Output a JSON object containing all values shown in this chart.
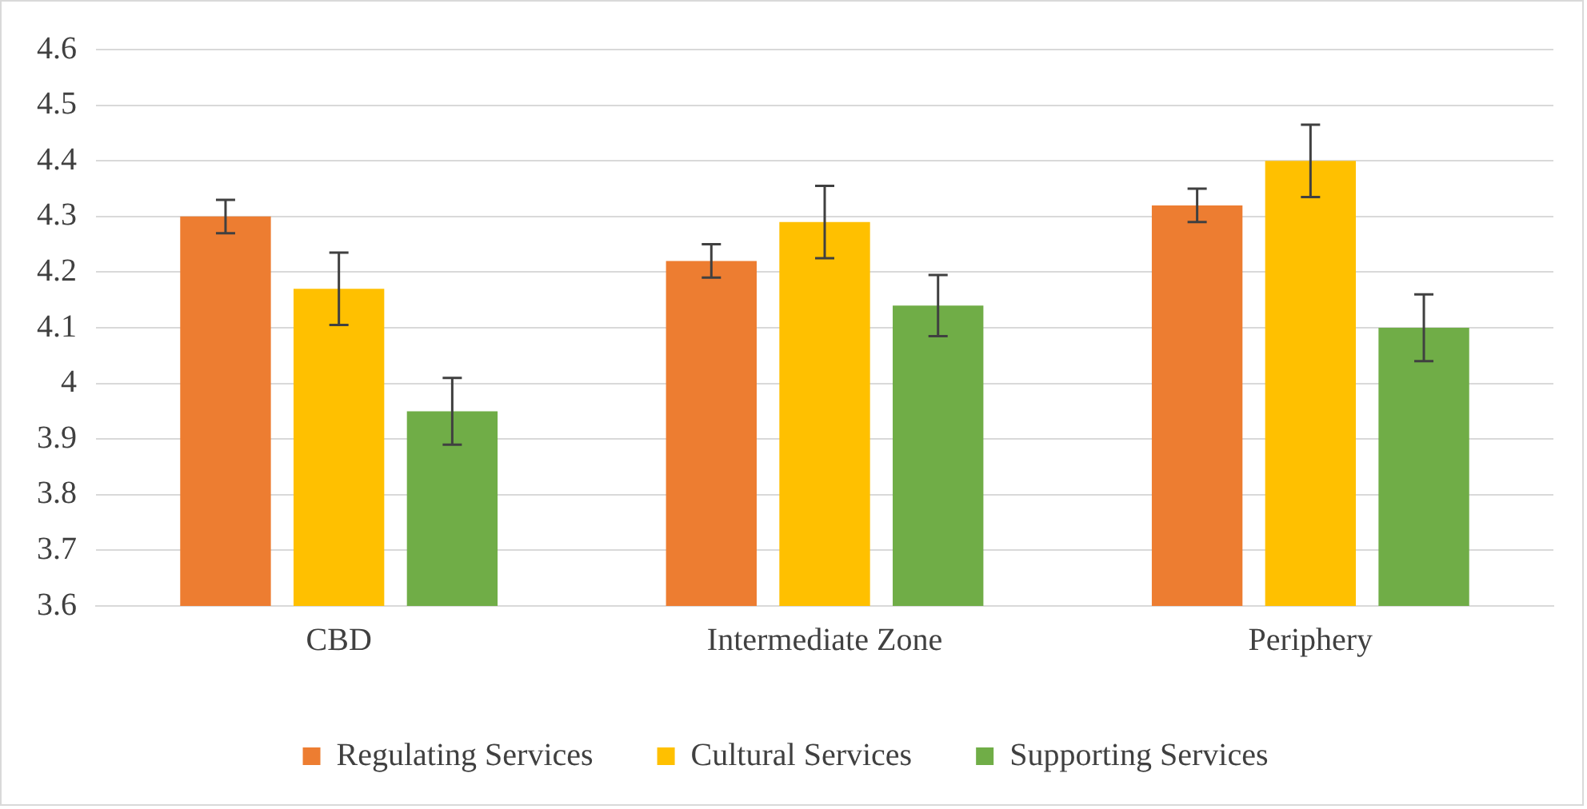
{
  "chart_data": {
    "type": "bar",
    "categories": [
      "CBD",
      "Intermediate Zone",
      "Periphery"
    ],
    "series": [
      {
        "name": "Regulating Services",
        "color": "#ed7d31",
        "values": [
          4.3,
          4.22,
          4.32
        ],
        "errors": [
          0.03,
          0.03,
          0.03
        ]
      },
      {
        "name": "Cultural Services",
        "color": "#ffc000",
        "values": [
          4.17,
          4.29,
          4.4
        ],
        "errors": [
          0.065,
          0.065,
          0.065
        ]
      },
      {
        "name": "Supporting Services",
        "color": "#70ad47",
        "values": [
          3.95,
          4.14,
          4.1
        ],
        "errors": [
          0.06,
          0.055,
          0.06
        ]
      }
    ],
    "ylim": [
      3.6,
      4.6
    ],
    "yticks": [
      3.6,
      3.7,
      3.8,
      3.9,
      4,
      4.1,
      4.2,
      4.3,
      4.4,
      4.5,
      4.6
    ],
    "grid": "y",
    "legend": "bottom"
  }
}
